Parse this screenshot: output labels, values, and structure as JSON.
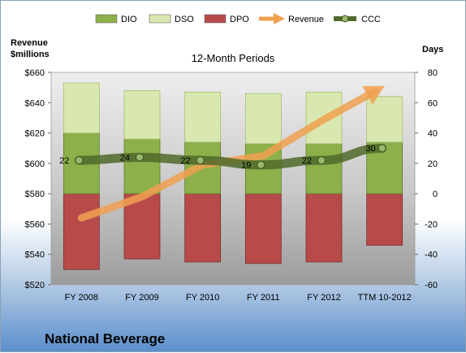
{
  "company": "National Beverage",
  "chart_data": {
    "type": "bar",
    "subtitle": "12-Month Periods",
    "left_axis_title": [
      "Revenue",
      "$millions"
    ],
    "right_axis_title": "Days",
    "categories": [
      "FY 2008",
      "FY 2009",
      "FY 2010",
      "FY 2011",
      "FY 2012",
      "TTM 10-2012"
    ],
    "left_ylim": [
      520,
      660
    ],
    "left_ticks": [
      520,
      540,
      560,
      580,
      600,
      620,
      640,
      660
    ],
    "left_tick_labels": [
      "$520",
      "$540",
      "$560",
      "$580",
      "$600",
      "$620",
      "$640",
      "$660"
    ],
    "right_ylim": [
      -60,
      80
    ],
    "right_ticks": [
      -60,
      -40,
      -20,
      0,
      20,
      40,
      60,
      80
    ],
    "right_tick_labels": [
      "-60",
      "-40",
      "-20",
      "0",
      "20",
      "40",
      "60",
      "80"
    ],
    "series": [
      {
        "name": "DIO",
        "axis": "right",
        "values": [
          40,
          36,
          34,
          33,
          33,
          34
        ],
        "color": "#8db04a"
      },
      {
        "name": "DSO",
        "axis": "right",
        "values": [
          33,
          32,
          33,
          33,
          34,
          30
        ],
        "color": "#d9e8b0"
      },
      {
        "name": "DPO",
        "axis": "right",
        "values": [
          -50,
          -43,
          -45,
          -46,
          -45,
          -34
        ],
        "color": "#b84a4a"
      },
      {
        "name": "Revenue",
        "axis": "left",
        "values": [
          564,
          578,
          599,
          605,
          629,
          651
        ],
        "color": "#f0a050"
      },
      {
        "name": "CCC",
        "axis": "right",
        "values": [
          22,
          24,
          22,
          19,
          22,
          30
        ],
        "color": "#4f6a2a"
      }
    ],
    "ccc_labels": [
      "22",
      "24",
      "22",
      "19",
      "22",
      "30"
    ],
    "legend_position": "top",
    "grid": false
  }
}
